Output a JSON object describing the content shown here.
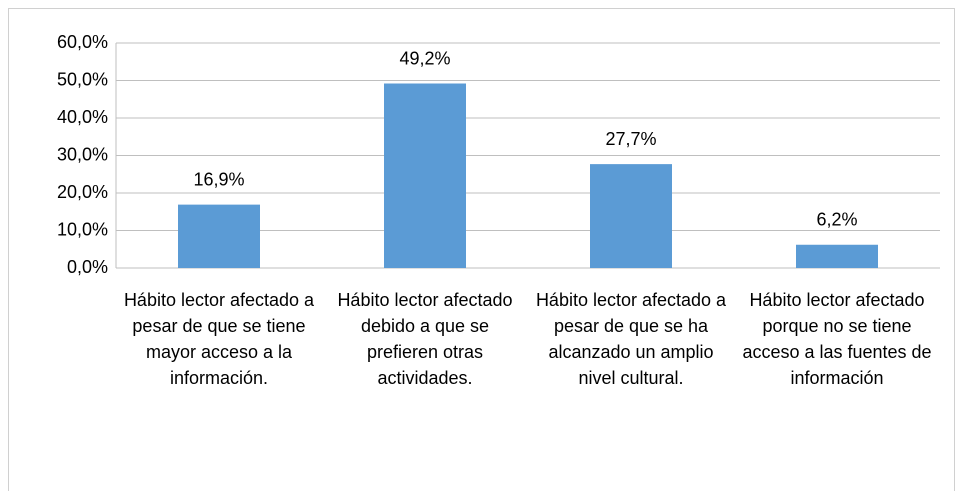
{
  "chart_data": {
    "type": "bar",
    "categories": [
      "Hábito lector afectado a pesar de que se tiene mayor acceso a la información.",
      "Hábito lector afectado debido a que se prefieren otras actividades.",
      "Hábito lector afectado a pesar de que se ha alcanzado un amplio nivel cultural.",
      "Hábito lector afectado porque no se tiene acceso a las fuentes de información"
    ],
    "values": [
      16.9,
      49.2,
      27.7,
      6.2
    ],
    "value_labels": [
      "16,9%",
      "49,2%",
      "27,7%",
      "6,2%"
    ],
    "color": "#5b9bd5",
    "ylim": [
      0,
      60
    ],
    "yticks": [
      {
        "value": 0,
        "label": "0,0%"
      },
      {
        "value": 10,
        "label": "10,0%"
      },
      {
        "value": 20,
        "label": "20,0%"
      },
      {
        "value": 30,
        "label": "30,0%"
      },
      {
        "value": 40,
        "label": "40,0%"
      },
      {
        "value": 50,
        "label": "50,0%"
      },
      {
        "value": 60,
        "label": "60,0%"
      }
    ],
    "grid": true
  }
}
